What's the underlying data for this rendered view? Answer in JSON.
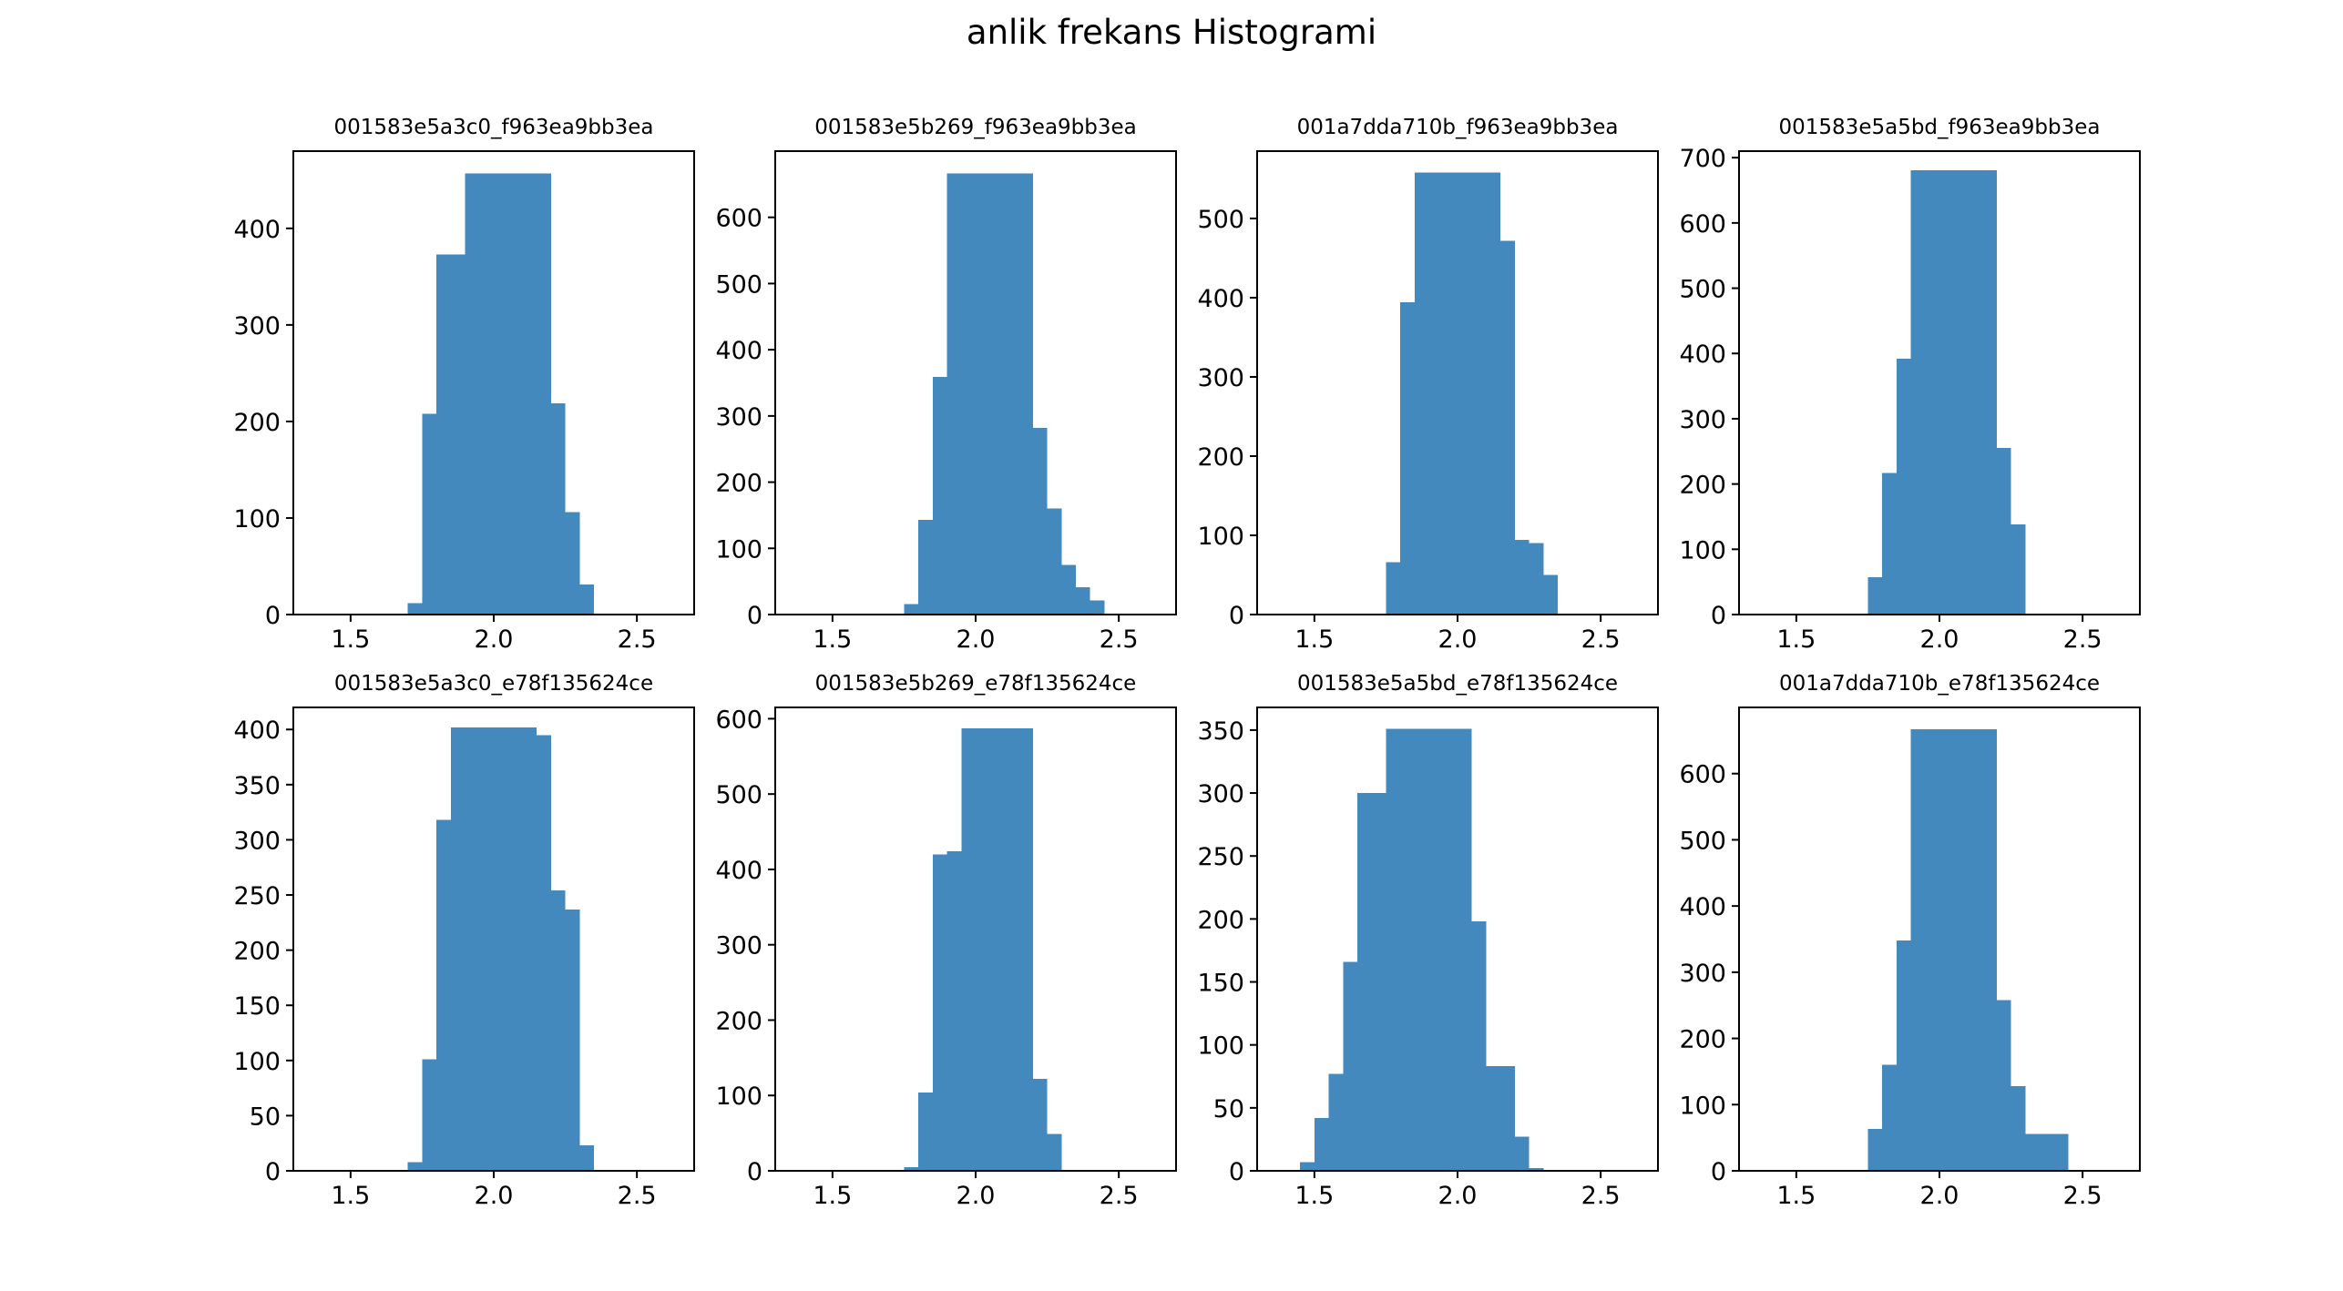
{
  "figure": {
    "title": "anlik frekans Histogrami"
  },
  "colors": {
    "bar": "#4489bd",
    "axis": "#000000",
    "background": "#ffffff"
  },
  "chart_data": [
    {
      "type": "bar",
      "title": "001583e5a3c0_f963ea9bb3ea",
      "xlabel": "",
      "ylabel": "",
      "xlim": [
        1.3,
        2.7
      ],
      "ylim": [
        0,
        480
      ],
      "xticks": [
        "1.5",
        "2.0",
        "2.5"
      ],
      "yticks": [
        "0",
        "100",
        "200",
        "300",
        "400"
      ],
      "bins": [
        {
          "x0": 1.7,
          "x1": 1.75,
          "value": 12
        },
        {
          "x0": 1.75,
          "x1": 1.8,
          "value": 208
        },
        {
          "x0": 1.8,
          "x1": 1.9,
          "value": 373
        },
        {
          "x0": 1.9,
          "x1": 2.2,
          "value": 457
        },
        {
          "x0": 2.2,
          "x1": 2.25,
          "value": 219
        },
        {
          "x0": 2.25,
          "x1": 2.3,
          "value": 106
        },
        {
          "x0": 2.3,
          "x1": 2.35,
          "value": 31
        }
      ]
    },
    {
      "type": "bar",
      "title": "001583e5b269_f963ea9bb3ea",
      "xlabel": "",
      "ylabel": "",
      "xlim": [
        1.3,
        2.7
      ],
      "ylim": [
        0,
        700
      ],
      "xticks": [
        "1.5",
        "2.0",
        "2.5"
      ],
      "yticks": [
        "0",
        "100",
        "200",
        "300",
        "400",
        "500",
        "600"
      ],
      "bins": [
        {
          "x0": 1.75,
          "x1": 1.8,
          "value": 16
        },
        {
          "x0": 1.8,
          "x1": 1.85,
          "value": 143
        },
        {
          "x0": 1.85,
          "x1": 1.9,
          "value": 359
        },
        {
          "x0": 1.9,
          "x1": 2.2,
          "value": 666
        },
        {
          "x0": 2.2,
          "x1": 2.25,
          "value": 282
        },
        {
          "x0": 2.25,
          "x1": 2.3,
          "value": 160
        },
        {
          "x0": 2.3,
          "x1": 2.35,
          "value": 75
        },
        {
          "x0": 2.35,
          "x1": 2.4,
          "value": 41
        },
        {
          "x0": 2.4,
          "x1": 2.45,
          "value": 21
        }
      ]
    },
    {
      "type": "bar",
      "title": "001a7dda710b_f963ea9bb3ea",
      "xlabel": "",
      "ylabel": "",
      "xlim": [
        1.3,
        2.7
      ],
      "ylim": [
        0,
        585
      ],
      "xticks": [
        "1.5",
        "2.0",
        "2.5"
      ],
      "yticks": [
        "0",
        "100",
        "200",
        "300",
        "400",
        "500"
      ],
      "bins": [
        {
          "x0": 1.75,
          "x1": 1.8,
          "value": 66
        },
        {
          "x0": 1.8,
          "x1": 1.85,
          "value": 394
        },
        {
          "x0": 1.85,
          "x1": 2.15,
          "value": 558
        },
        {
          "x0": 2.15,
          "x1": 2.2,
          "value": 472
        },
        {
          "x0": 2.2,
          "x1": 2.25,
          "value": 94
        },
        {
          "x0": 2.25,
          "x1": 2.3,
          "value": 90
        },
        {
          "x0": 2.3,
          "x1": 2.35,
          "value": 50
        }
      ]
    },
    {
      "type": "bar",
      "title": "001583e5a5bd_f963ea9bb3ea",
      "xlabel": "",
      "ylabel": "",
      "xlim": [
        1.3,
        2.7
      ],
      "ylim": [
        0,
        710
      ],
      "xticks": [
        "1.5",
        "2.0",
        "2.5"
      ],
      "yticks": [
        "0",
        "100",
        "200",
        "300",
        "400",
        "500",
        "600",
        "700"
      ],
      "bins": [
        {
          "x0": 1.75,
          "x1": 1.8,
          "value": 57
        },
        {
          "x0": 1.8,
          "x1": 1.85,
          "value": 217
        },
        {
          "x0": 1.85,
          "x1": 1.9,
          "value": 392
        },
        {
          "x0": 1.9,
          "x1": 2.2,
          "value": 681
        },
        {
          "x0": 2.2,
          "x1": 2.25,
          "value": 255
        },
        {
          "x0": 2.25,
          "x1": 2.3,
          "value": 138
        }
      ]
    },
    {
      "type": "bar",
      "title": "001583e5a3c0_e78f135624ce",
      "xlabel": "",
      "ylabel": "",
      "xlim": [
        1.3,
        2.7
      ],
      "ylim": [
        0,
        420
      ],
      "xticks": [
        "1.5",
        "2.0",
        "2.5"
      ],
      "yticks": [
        "0",
        "50",
        "100",
        "150",
        "200",
        "250",
        "300",
        "350",
        "400"
      ],
      "bins": [
        {
          "x0": 1.7,
          "x1": 1.75,
          "value": 8
        },
        {
          "x0": 1.75,
          "x1": 1.8,
          "value": 101
        },
        {
          "x0": 1.8,
          "x1": 1.85,
          "value": 318
        },
        {
          "x0": 1.85,
          "x1": 2.15,
          "value": 402
        },
        {
          "x0": 2.15,
          "x1": 2.2,
          "value": 395
        },
        {
          "x0": 2.2,
          "x1": 2.25,
          "value": 254
        },
        {
          "x0": 2.25,
          "x1": 2.3,
          "value": 237
        },
        {
          "x0": 2.3,
          "x1": 2.35,
          "value": 23
        }
      ]
    },
    {
      "type": "bar",
      "title": "001583e5b269_e78f135624ce",
      "xlabel": "",
      "ylabel": "",
      "xlim": [
        1.3,
        2.7
      ],
      "ylim": [
        0,
        615
      ],
      "xticks": [
        "1.5",
        "2.0",
        "2.5"
      ],
      "yticks": [
        "0",
        "100",
        "200",
        "300",
        "400",
        "500",
        "600"
      ],
      "bins": [
        {
          "x0": 1.75,
          "x1": 1.8,
          "value": 5
        },
        {
          "x0": 1.8,
          "x1": 1.85,
          "value": 104
        },
        {
          "x0": 1.85,
          "x1": 1.9,
          "value": 420
        },
        {
          "x0": 1.9,
          "x1": 1.95,
          "value": 424
        },
        {
          "x0": 1.95,
          "x1": 2.2,
          "value": 587
        },
        {
          "x0": 2.2,
          "x1": 2.25,
          "value": 122
        },
        {
          "x0": 2.25,
          "x1": 2.3,
          "value": 49
        }
      ]
    },
    {
      "type": "bar",
      "title": "001583e5a5bd_e78f135624ce",
      "xlabel": "",
      "ylabel": "",
      "xlim": [
        1.3,
        2.7
      ],
      "ylim": [
        0,
        368
      ],
      "xticks": [
        "1.5",
        "2.0",
        "2.5"
      ],
      "yticks": [
        "0",
        "50",
        "100",
        "150",
        "200",
        "250",
        "300",
        "350"
      ],
      "bins": [
        {
          "x0": 1.45,
          "x1": 1.5,
          "value": 7
        },
        {
          "x0": 1.5,
          "x1": 1.55,
          "value": 42
        },
        {
          "x0": 1.55,
          "x1": 1.6,
          "value": 77
        },
        {
          "x0": 1.6,
          "x1": 1.65,
          "value": 166
        },
        {
          "x0": 1.65,
          "x1": 1.75,
          "value": 300
        },
        {
          "x0": 1.75,
          "x1": 2.05,
          "value": 351
        },
        {
          "x0": 2.05,
          "x1": 2.1,
          "value": 198
        },
        {
          "x0": 2.1,
          "x1": 2.2,
          "value": 83
        },
        {
          "x0": 2.2,
          "x1": 2.25,
          "value": 27
        },
        {
          "x0": 2.25,
          "x1": 2.3,
          "value": 2
        }
      ]
    },
    {
      "type": "bar",
      "title": "001a7dda710b_e78f135624ce",
      "xlabel": "",
      "ylabel": "",
      "xlim": [
        1.3,
        2.7
      ],
      "ylim": [
        0,
        700
      ],
      "xticks": [
        "1.5",
        "2.0",
        "2.5"
      ],
      "yticks": [
        "0",
        "100",
        "200",
        "300",
        "400",
        "500",
        "600"
      ],
      "bins": [
        {
          "x0": 1.75,
          "x1": 1.8,
          "value": 63
        },
        {
          "x0": 1.8,
          "x1": 1.85,
          "value": 160
        },
        {
          "x0": 1.85,
          "x1": 1.9,
          "value": 348
        },
        {
          "x0": 1.9,
          "x1": 2.2,
          "value": 667
        },
        {
          "x0": 2.2,
          "x1": 2.25,
          "value": 258
        },
        {
          "x0": 2.25,
          "x1": 2.3,
          "value": 128
        },
        {
          "x0": 2.3,
          "x1": 2.45,
          "value": 56
        }
      ]
    }
  ]
}
